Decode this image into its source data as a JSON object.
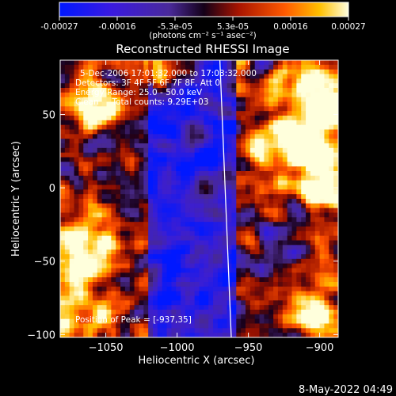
{
  "colorbar": {
    "tick_labels": [
      "-0.00027",
      "-0.00016",
      "-5.3e-05",
      "5.3e-05",
      "0.00016",
      "0.00027"
    ],
    "unit_label": "(photons cm⁻² s⁻¹ asec⁻²)",
    "range": [
      -0.00027,
      0.00027
    ]
  },
  "info": {
    "time_range": "5-Dec-2006 17:01:32.000 to 17:03:32.000",
    "detectors": "Detectors: 3F 4F 5F 6F 7F 8F, Att 0",
    "energy_range": "Energy Range: 25.0 - 50.0 keV",
    "clean_totals": "Clean     Total counts: 9.29E+03",
    "peak": "Position of Peak = [-937,35]"
  },
  "timestamp": "8-May-2022 04:49",
  "chart_data": {
    "type": "heatmap",
    "title": "Reconstructed RHESSI Image",
    "xlabel": "Heliocentric X (arcsec)",
    "ylabel": "Heliocentric Y (arcsec)",
    "xlim": [
      -1082,
      -887
    ],
    "ylim": [
      -102,
      87
    ],
    "x_ticks": [
      -1050,
      -1000,
      -950,
      -900
    ],
    "y_ticks": [
      50,
      0,
      -50,
      -100
    ],
    "x_tick_labels": [
      "−1050",
      "−1000",
      "−950",
      "−900"
    ],
    "y_tick_labels": [
      "50",
      "0",
      "−50",
      "−100"
    ],
    "colormap": "rhessi-diverging: blue-purple (negative) to red-yellow-white (positive)",
    "peak_position": [
      -937,
      35
    ],
    "limb_line": {
      "x_at_top": -970,
      "x_at_bottom": -962
    },
    "grid": false
  }
}
